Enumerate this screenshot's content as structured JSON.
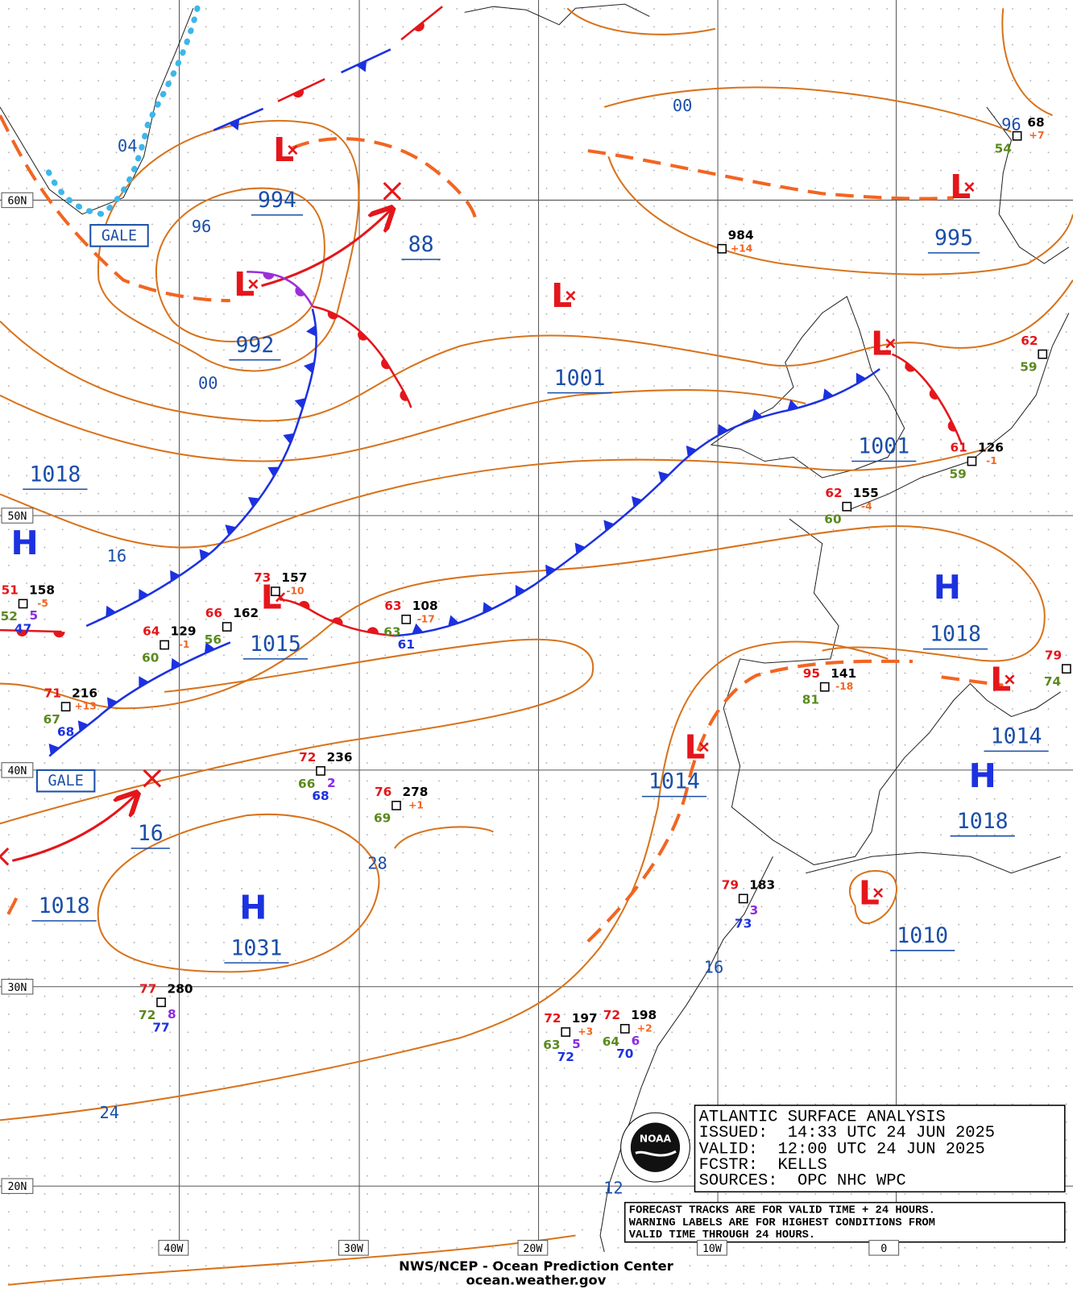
{
  "lat_labels": [
    "60N",
    "50N",
    "40N",
    "30N",
    "20N"
  ],
  "lon_labels": [
    "40W",
    "30W",
    "20W",
    "10W",
    "0"
  ],
  "centers": [
    {
      "symbol": "L",
      "pressure": "994"
    },
    {
      "symbol": "L",
      "pressure": "992"
    },
    {
      "pressure": "88"
    },
    {
      "symbol": "L",
      "pressure": "1001"
    },
    {
      "symbol": "L",
      "pressure": "1001"
    },
    {
      "symbol": "L",
      "pressure": "995"
    },
    {
      "symbol": "H",
      "pressure": "1018"
    },
    {
      "symbol": "L",
      "pressure": "1015"
    },
    {
      "symbol": "H",
      "pressure": "1018"
    },
    {
      "symbol": "L",
      "pressure": "1014"
    },
    {
      "symbol": "H",
      "pressure": "1018"
    },
    {
      "symbol": "L",
      "pressure": "1014"
    },
    {
      "symbol": "L",
      "pressure": "1010"
    },
    {
      "symbol": "H",
      "pressure": "1031"
    },
    {
      "pressure": "16"
    },
    {
      "pressure": "1018"
    }
  ],
  "isobar_labels": [
    "04",
    "96",
    "00",
    "16",
    "28",
    "24",
    "16",
    "12",
    "00",
    "96"
  ],
  "warnings": [
    "GALE",
    "GALE"
  ],
  "stations": [
    {
      "pressure": "984",
      "tendency": "+14"
    },
    {
      "pressure": "126",
      "temp": "61",
      "tendency": "-1",
      "dewpoint": "59"
    },
    {
      "pressure": "155",
      "temp": "62",
      "tendency": "-4",
      "dewpoint": "60"
    },
    {
      "pressure": "141",
      "temp": "95",
      "tendency": "-18",
      "dewpoint": "81"
    },
    {
      "pressure": "183",
      "temp": "79",
      "wave": "3",
      "sst": "73"
    },
    {
      "pressure": "197",
      "temp": "72",
      "tendency": "+3",
      "dewpoint": "63",
      "wave": "5",
      "sst": "72"
    },
    {
      "pressure": "198",
      "temp": "72",
      "tendency": "+2",
      "dewpoint": "64",
      "wave": "6",
      "sst": "70"
    },
    {
      "pressure": "280",
      "temp": "77",
      "dewpoint": "72",
      "wave": "8",
      "sst": "77"
    },
    {
      "pressure": "278",
      "temp": "76",
      "tendency": "+1",
      "dewpoint": "69"
    },
    {
      "pressure": "236",
      "temp": "72",
      "dewpoint": "66",
      "wave": "2",
      "sst": "68"
    },
    {
      "pressure": "216",
      "temp": "71",
      "tendency": "+13",
      "dewpoint": "67",
      "sst": "68"
    },
    {
      "pressure": "129",
      "temp": "64",
      "tendency": "-1",
      "dewpoint": "60"
    },
    {
      "pressure": "162",
      "temp": "66",
      "dewpoint": "56"
    },
    {
      "pressure": "157",
      "temp": "73",
      "tendency": "-10"
    },
    {
      "pressure": "108",
      "temp": "63",
      "tendency": "-17",
      "dewpoint": "63",
      "sst": "61"
    },
    {
      "pressure": "158",
      "temp": "51",
      "tendency": "-5",
      "dewpoint": "52",
      "wave": "5",
      "sst": "47"
    },
    {
      "pressure": "68",
      "tendency": "+7",
      "dewpoint": "54"
    },
    {
      "temp": "62",
      "dewpoint": "59"
    },
    {
      "temp": "79",
      "dewpoint": "74"
    }
  ],
  "info": {
    "title": "ATLANTIC SURFACE ANALYSIS",
    "issued": "ISSUED:  14:33 UTC 24 JUN 2025",
    "valid": "VALID:  12:00 UTC 24 JUN 2025",
    "forecaster": "FCSTR:  KELLS",
    "sources": "SOURCES:  OPC NHC WPC"
  },
  "notes": [
    "FORECAST TRACKS ARE FOR VALID TIME + 24 HOURS.",
    "WARNING LABELS ARE FOR HIGHEST CONDITIONS FROM",
    "VALID TIME THROUGH 24 HOURS."
  ],
  "footer": {
    "agency": "NWS/NCEP - Ocean Prediction Center",
    "url": "ocean.weather.gov"
  },
  "logo": "NOAA"
}
